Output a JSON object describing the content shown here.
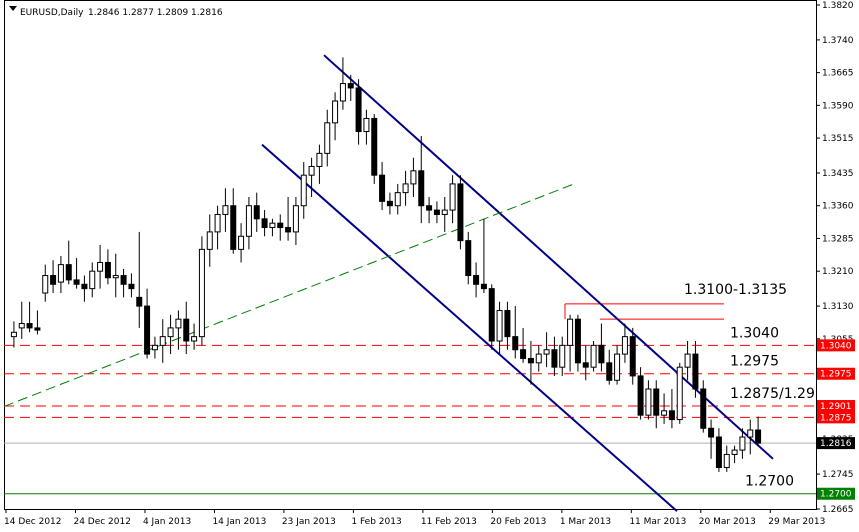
{
  "header": {
    "symbol": "EURUSD,Daily",
    "ohlc": "1.2846 1.2877 1.2809 1.2816"
  },
  "colors": {
    "background": "#ffffff",
    "candle_bull_body": "#ffffff",
    "candle_bear_body": "#000000",
    "candle_outline": "#000000",
    "channel": "#00008b",
    "trendline": "#008000",
    "resistance": "#ff0000",
    "level_badge": "#ff0000",
    "current_badge": "#000000",
    "support_line": "#008000",
    "support_badge": "#008000"
  },
  "chart_data": {
    "type": "candlestick",
    "instrument": "EURUSD",
    "timeframe": "Daily",
    "ylim": [
      1.2665,
      1.382
    ],
    "x_tick_labels": [
      "14 Dec 2012",
      "24 Dec 2012",
      "4 Jan 2013",
      "14 Jan 2013",
      "23 Jan 2013",
      "1 Feb 2013",
      "11 Feb 2013",
      "20 Feb 2013",
      "1 Mar 2013",
      "11 Mar 2013",
      "20 Mar 2013",
      "29 Mar 2013"
    ],
    "y_tick_labels": [
      "1.3820",
      "1.3740",
      "1.3665",
      "1.3590",
      "1.3515",
      "1.3435",
      "1.3360",
      "1.3285",
      "1.3210",
      "1.3130",
      "1.3055",
      "1.2975",
      "1.2900",
      "1.2825",
      "1.2745",
      "1.2665"
    ],
    "candles": [
      [
        1.306,
        1.3095,
        1.3035,
        1.307
      ],
      [
        1.308,
        1.314,
        1.3055,
        1.309
      ],
      [
        1.309,
        1.314,
        1.307,
        1.308
      ],
      [
        1.308,
        1.312,
        1.3065,
        1.3075
      ],
      [
        1.316,
        1.3225,
        1.314,
        1.32
      ],
      [
        1.32,
        1.3235,
        1.316,
        1.318
      ],
      [
        1.3185,
        1.3245,
        1.316,
        1.3225
      ],
      [
        1.3225,
        1.328,
        1.318,
        1.319
      ],
      [
        1.319,
        1.324,
        1.317,
        1.318
      ],
      [
        1.318,
        1.32,
        1.314,
        1.317
      ],
      [
        1.317,
        1.323,
        1.315,
        1.321
      ],
      [
        1.321,
        1.327,
        1.317,
        1.323
      ],
      [
        1.323,
        1.326,
        1.318,
        1.3195
      ],
      [
        1.3195,
        1.325,
        1.315,
        1.32
      ],
      [
        1.32,
        1.3215,
        1.315,
        1.318
      ],
      [
        1.318,
        1.3205,
        1.315,
        1.317
      ],
      [
        1.315,
        1.33,
        1.308,
        1.313
      ],
      [
        1.313,
        1.317,
        1.301,
        1.302
      ],
      [
        1.303,
        1.306,
        1.301,
        1.304
      ],
      [
        1.304,
        1.31,
        1.3,
        1.306
      ],
      [
        1.306,
        1.311,
        1.302,
        1.308
      ],
      [
        1.308,
        1.312,
        1.303,
        1.31
      ],
      [
        1.31,
        1.314,
        1.302,
        1.305
      ],
      [
        1.305,
        1.309,
        1.303,
        1.306
      ],
      [
        1.306,
        1.329,
        1.304,
        1.326
      ],
      [
        1.326,
        1.334,
        1.322,
        1.33
      ],
      [
        1.33,
        1.336,
        1.326,
        1.334
      ],
      [
        1.334,
        1.34,
        1.33,
        1.336
      ],
      [
        1.336,
        1.34,
        1.325,
        1.326
      ],
      [
        1.326,
        1.332,
        1.323,
        1.329
      ],
      [
        1.329,
        1.338,
        1.326,
        1.336
      ],
      [
        1.336,
        1.339,
        1.33,
        1.333
      ],
      [
        1.333,
        1.335,
        1.329,
        1.331
      ],
      [
        1.331,
        1.333,
        1.329,
        1.332
      ],
      [
        1.332,
        1.334,
        1.328,
        1.331
      ],
      [
        1.331,
        1.338,
        1.328,
        1.33
      ],
      [
        1.33,
        1.338,
        1.327,
        1.336
      ],
      [
        1.336,
        1.346,
        1.333,
        1.343
      ],
      [
        1.343,
        1.347,
        1.338,
        1.345
      ],
      [
        1.345,
        1.35,
        1.341,
        1.348
      ],
      [
        1.348,
        1.358,
        1.345,
        1.355
      ],
      [
        1.355,
        1.362,
        1.351,
        1.36
      ],
      [
        1.36,
        1.37,
        1.358,
        1.364
      ],
      [
        1.364,
        1.366,
        1.36,
        1.363
      ],
      [
        1.363,
        1.365,
        1.35,
        1.353
      ],
      [
        1.353,
        1.358,
        1.35,
        1.356
      ],
      [
        1.356,
        1.357,
        1.341,
        1.343
      ],
      [
        1.343,
        1.346,
        1.335,
        1.337
      ],
      [
        1.337,
        1.339,
        1.334,
        1.336
      ],
      [
        1.336,
        1.341,
        1.334,
        1.339
      ],
      [
        1.339,
        1.344,
        1.336,
        1.341
      ],
      [
        1.341,
        1.347,
        1.338,
        1.344
      ],
      [
        1.344,
        1.352,
        1.332,
        1.336
      ],
      [
        1.336,
        1.338,
        1.332,
        1.335
      ],
      [
        1.335,
        1.337,
        1.332,
        1.334
      ],
      [
        1.334,
        1.338,
        1.33,
        1.335
      ],
      [
        1.335,
        1.343,
        1.332,
        1.341
      ],
      [
        1.341,
        1.343,
        1.326,
        1.328
      ],
      [
        1.328,
        1.33,
        1.318,
        1.32
      ],
      [
        1.32,
        1.323,
        1.315,
        1.318
      ],
      [
        1.318,
        1.333,
        1.316,
        1.317
      ],
      [
        1.317,
        1.318,
        1.303,
        1.305
      ],
      [
        1.305,
        1.314,
        1.302,
        1.312
      ],
      [
        1.312,
        1.314,
        1.303,
        1.306
      ],
      [
        1.306,
        1.313,
        1.301,
        1.303
      ],
      [
        1.303,
        1.308,
        1.3,
        1.301
      ],
      [
        1.301,
        1.305,
        1.295,
        1.3
      ],
      [
        1.3,
        1.304,
        1.298,
        1.302
      ],
      [
        1.302,
        1.307,
        1.299,
        1.303
      ],
      [
        1.303,
        1.306,
        1.297,
        1.299
      ],
      [
        1.299,
        1.306,
        1.297,
        1.304
      ],
      [
        1.304,
        1.311,
        1.298,
        1.31
      ],
      [
        1.31,
        1.311,
        1.298,
        1.3
      ],
      [
        1.3,
        1.304,
        1.296,
        1.299
      ],
      [
        1.299,
        1.305,
        1.298,
        1.304
      ],
      [
        1.304,
        1.309,
        1.298,
        1.3
      ],
      [
        1.3,
        1.303,
        1.295,
        1.296
      ],
      [
        1.296,
        1.304,
        1.295,
        1.302
      ],
      [
        1.302,
        1.309,
        1.3,
        1.306
      ],
      [
        1.306,
        1.308,
        1.295,
        1.297
      ],
      [
        1.297,
        1.299,
        1.287,
        1.288
      ],
      [
        1.288,
        1.296,
        1.287,
        1.294
      ],
      [
        1.294,
        1.296,
        1.285,
        1.288
      ],
      [
        1.288,
        1.293,
        1.286,
        1.289
      ],
      [
        1.289,
        1.294,
        1.285,
        1.287
      ],
      [
        1.287,
        1.3,
        1.286,
        1.299
      ],
      [
        1.299,
        1.305,
        1.296,
        1.302
      ],
      [
        1.302,
        1.305,
        1.292,
        1.294
      ],
      [
        1.294,
        1.296,
        1.284,
        1.285
      ],
      [
        1.285,
        1.287,
        1.278,
        1.283
      ],
      [
        1.283,
        1.285,
        1.275,
        1.276
      ],
      [
        1.276,
        1.281,
        1.275,
        1.279
      ],
      [
        1.279,
        1.281,
        1.277,
        1.28
      ],
      [
        1.28,
        1.285,
        1.278,
        1.283
      ],
      [
        1.283,
        1.287,
        1.279,
        1.2846
      ],
      [
        1.2846,
        1.2877,
        1.2809,
        1.2816
      ]
    ],
    "horizontal_levels": [
      {
        "label": "1.3040",
        "value": 1.304,
        "annotation": "1.3040"
      },
      {
        "label": "1.2975",
        "value": 1.2975,
        "annotation": "1.2975"
      },
      {
        "label": "1.2901",
        "value": 1.2901,
        "annotation": "1.2875/1.29"
      },
      {
        "label": "1.2875",
        "value": 1.2875,
        "annotation": ""
      },
      {
        "label": "1.2816",
        "value": 1.2816,
        "annotation": "",
        "current": true
      },
      {
        "label": "1.2700",
        "value": 1.27,
        "annotation": "1.2700",
        "support": true
      }
    ],
    "resistance_zone": {
      "label": "1.3100-1.3135",
      "top": 1.3135,
      "bottom": 1.31
    },
    "trend_lines": {
      "channel_upper": {
        "from": [
          1.3705
        ],
        "to": [
          1.278
        ]
      },
      "channel_lower": {
        "from": [
          1.35
        ],
        "to": [
          1.266
        ]
      },
      "green_dashed": {
        "from": [
          1.29
        ],
        "to": [
          1.341
        ]
      }
    },
    "grid": false
  }
}
